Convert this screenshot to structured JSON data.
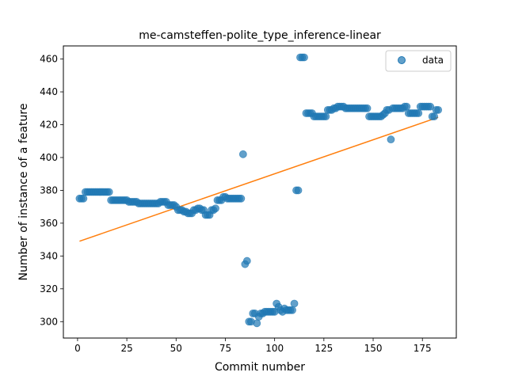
{
  "chart_data": {
    "type": "scatter",
    "title": "me-camsteffen-polite_type_inference-linear",
    "xlabel": "Commit number",
    "ylabel": "Number of instance of a feature",
    "xlim": [
      -7.2,
      192.2
    ],
    "ylim": [
      290,
      468
    ],
    "xticks": [
      0,
      25,
      50,
      75,
      100,
      125,
      150,
      175
    ],
    "yticks": [
      300,
      320,
      340,
      360,
      380,
      400,
      420,
      440,
      460
    ],
    "grid": false,
    "legend": {
      "position": "top-right",
      "entries": [
        "data"
      ]
    },
    "colors": {
      "data": "#1f77b4",
      "fit": "#ff7f0e"
    },
    "series": [
      {
        "name": "data",
        "kind": "scatter",
        "x": [
          1,
          2,
          3,
          4,
          5,
          6,
          7,
          8,
          9,
          10,
          11,
          12,
          13,
          14,
          15,
          16,
          17,
          18,
          19,
          20,
          21,
          22,
          23,
          24,
          25,
          26,
          27,
          28,
          29,
          30,
          31,
          32,
          33,
          34,
          35,
          36,
          37,
          38,
          39,
          40,
          41,
          42,
          43,
          44,
          45,
          46,
          47,
          48,
          49,
          50,
          51,
          52,
          53,
          54,
          55,
          56,
          57,
          58,
          59,
          60,
          61,
          62,
          63,
          64,
          65,
          66,
          67,
          68,
          69,
          70,
          71,
          72,
          73,
          74,
          75,
          76,
          77,
          78,
          79,
          80,
          81,
          82,
          83,
          84,
          85,
          86,
          87,
          88,
          89,
          90,
          91,
          92,
          93,
          94,
          95,
          96,
          97,
          98,
          99,
          100,
          101,
          102,
          103,
          104,
          105,
          106,
          107,
          108,
          109,
          110,
          111,
          112,
          113,
          114,
          115,
          116,
          117,
          118,
          119,
          120,
          121,
          122,
          123,
          124,
          125,
          126,
          127,
          128,
          129,
          130,
          131,
          132,
          133,
          134,
          135,
          136,
          137,
          138,
          139,
          140,
          141,
          142,
          143,
          144,
          145,
          146,
          147,
          148,
          149,
          150,
          151,
          152,
          153,
          154,
          155,
          156,
          157,
          158,
          159,
          160,
          161,
          162,
          163,
          164,
          165,
          166,
          167,
          168,
          169,
          170,
          171,
          172,
          173,
          174,
          175,
          176,
          177,
          178,
          179,
          180,
          181,
          182,
          183
        ],
        "y": [
          375,
          375,
          375,
          379,
          379,
          379,
          379,
          379,
          379,
          379,
          379,
          379,
          379,
          379,
          379,
          379,
          374,
          374,
          374,
          374,
          374,
          374,
          374,
          374,
          374,
          373,
          373,
          373,
          373,
          373,
          372,
          372,
          372,
          372,
          372,
          372,
          372,
          372,
          372,
          372,
          372,
          373,
          373,
          373,
          373,
          371,
          371,
          371,
          371,
          370,
          368,
          368,
          368,
          367,
          367,
          366,
          366,
          366,
          368,
          368,
          369,
          369,
          368,
          368,
          365,
          365,
          365,
          368,
          368,
          369,
          374,
          374,
          374,
          376,
          376,
          375,
          375,
          375,
          375,
          375,
          375,
          375,
          375,
          402,
          335,
          337,
          300,
          300,
          305,
          305,
          299,
          303,
          305,
          305,
          306,
          306,
          306,
          306,
          306,
          306,
          311,
          309,
          307,
          306,
          308,
          307,
          307,
          307,
          307,
          311,
          380,
          380,
          461,
          461,
          461,
          427,
          427,
          427,
          427,
          425,
          425,
          425,
          425,
          425,
          425,
          425,
          429,
          429,
          429,
          430,
          430,
          431,
          431,
          431,
          431,
          430,
          430,
          430,
          430,
          430,
          430,
          430,
          430,
          430,
          430,
          430,
          430,
          425,
          425,
          425,
          425,
          425,
          425,
          425,
          426,
          427,
          429,
          429,
          411,
          430,
          430,
          430,
          430,
          430,
          430,
          431,
          431,
          427,
          427,
          427,
          427,
          427,
          427,
          431,
          431,
          431,
          431,
          431,
          431,
          425,
          425,
          429,
          429
        ]
      },
      {
        "kind": "line",
        "x": [
          1,
          183
        ],
        "y": [
          349,
          424.5
        ]
      }
    ]
  }
}
